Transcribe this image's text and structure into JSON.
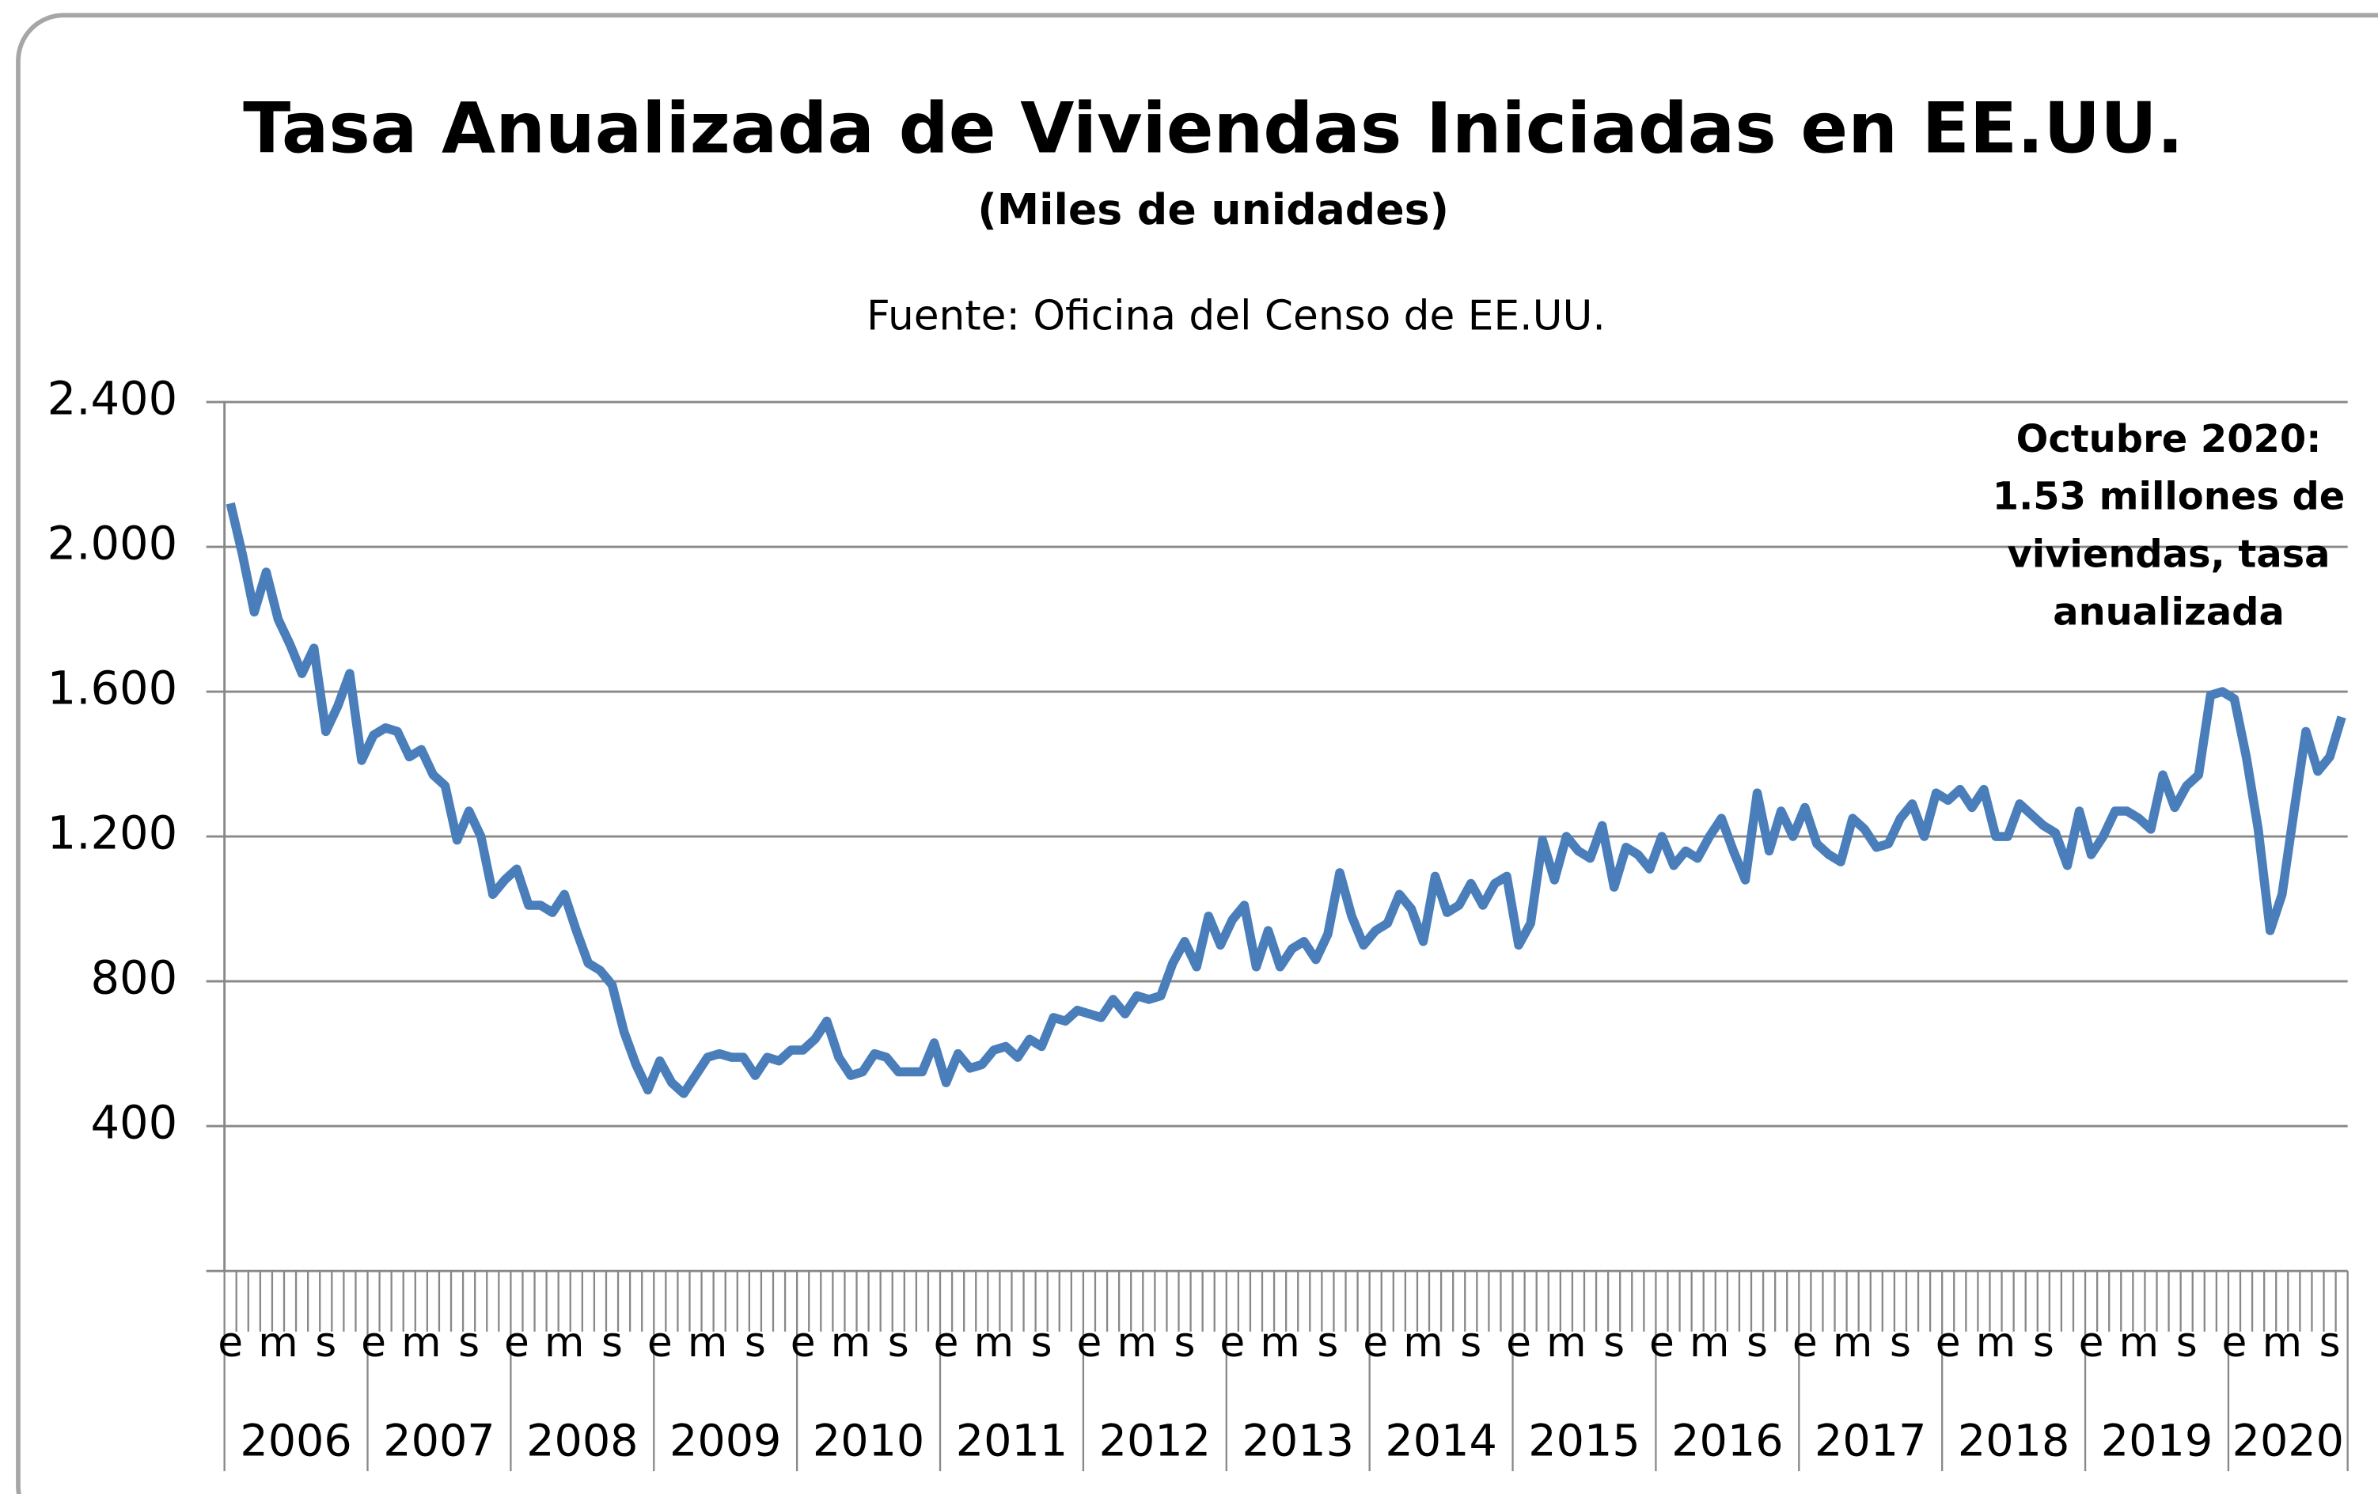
{
  "chart_data": {
    "type": "line",
    "title": "Tasa Anualizada de Viviendas Iniciadas en EE.UU.",
    "subtitle": "(Miles de unidades)",
    "source": "Fuente: Oficina del Censo de EE.UU.",
    "annotation": [
      "Octubre 2020:",
      "1.53 millones de",
      "viviendas, tasa",
      "anualizada"
    ],
    "categories": [
      "e",
      null,
      null,
      null,
      "m",
      null,
      null,
      null,
      "s",
      null,
      null,
      null,
      "e",
      null,
      null,
      null,
      "m",
      null,
      null,
      null,
      "s",
      null,
      null,
      null,
      "e",
      null,
      null,
      null,
      "m",
      null,
      null,
      null,
      "s",
      null,
      null,
      null,
      "e",
      null,
      null,
      null,
      "m",
      null,
      null,
      null,
      "s",
      null,
      null,
      null,
      "e",
      null,
      null,
      null,
      "m",
      null,
      null,
      null,
      "s",
      null,
      null,
      null,
      "e",
      null,
      null,
      null,
      "m",
      null,
      null,
      null,
      "s",
      null,
      null,
      null,
      "e",
      null,
      null,
      null,
      "m",
      null,
      null,
      null,
      "s",
      null,
      null,
      null,
      "e",
      null,
      null,
      null,
      "m",
      null,
      null,
      null,
      "s",
      null,
      null,
      null,
      "e",
      null,
      null,
      null,
      "m",
      null,
      null,
      null,
      "s",
      null,
      null,
      null,
      "e",
      null,
      null,
      null,
      "m",
      null,
      null,
      null,
      "s",
      null,
      null,
      null,
      "e",
      null,
      null,
      null,
      "m",
      null,
      null,
      null,
      "s",
      null,
      null,
      null,
      "e",
      null,
      null,
      null,
      "m",
      null,
      null,
      null,
      "s",
      null,
      null,
      null,
      "e",
      null,
      null,
      null,
      "m",
      null,
      null,
      null,
      "s",
      null,
      null,
      null,
      "e",
      null,
      null,
      null,
      "m",
      null,
      null,
      null,
      "s",
      null,
      null,
      null,
      "e",
      null,
      null,
      null,
      "m",
      null,
      null,
      null,
      "s",
      null
    ],
    "year_labels": [
      "2006",
      "2007",
      "2008",
      "2009",
      "2010",
      "2011",
      "2012",
      "2013",
      "2014",
      "2015",
      "2016",
      "2017",
      "2018",
      "2019",
      "2020"
    ],
    "series": [
      {
        "name": "Viviendas iniciadas",
        "color": "#4a7ebb",
        "values": [
          2120,
          1980,
          1820,
          1930,
          1800,
          1730,
          1650,
          1720,
          1490,
          1560,
          1650,
          1410,
          1480,
          1500,
          1490,
          1420,
          1440,
          1370,
          1340,
          1190,
          1270,
          1200,
          1040,
          1080,
          1110,
          1010,
          1010,
          990,
          1040,
          940,
          850,
          830,
          790,
          660,
          570,
          500,
          580,
          520,
          490,
          540,
          590,
          600,
          590,
          590,
          540,
          590,
          580,
          610,
          610,
          640,
          690,
          590,
          540,
          550,
          600,
          590,
          550,
          550,
          550,
          630,
          520,
          600,
          560,
          570,
          610,
          620,
          590,
          640,
          620,
          700,
          690,
          720,
          710,
          700,
          750,
          710,
          760,
          750,
          760,
          850,
          910,
          840,
          980,
          900,
          970,
          1010,
          840,
          940,
          840,
          890,
          910,
          860,
          930,
          1100,
          980,
          900,
          940,
          960,
          1040,
          1000,
          910,
          1090,
          990,
          1010,
          1070,
          1010,
          1070,
          1090,
          900,
          960,
          1190,
          1080,
          1200,
          1160,
          1140,
          1230,
          1060,
          1170,
          1150,
          1110,
          1200,
          1120,
          1160,
          1140,
          1200,
          1250,
          1160,
          1080,
          1320,
          1160,
          1270,
          1200,
          1280,
          1180,
          1150,
          1130,
          1250,
          1220,
          1170,
          1180,
          1250,
          1290,
          1200,
          1320,
          1300,
          1330,
          1280,
          1330,
          1200,
          1200,
          1290,
          1260,
          1230,
          1210,
          1120,
          1270,
          1150,
          1200,
          1270,
          1270,
          1250,
          1220,
          1370,
          1280,
          1340,
          1370,
          1590,
          1600,
          1580,
          1420,
          1220,
          940,
          1040,
          1270,
          1490,
          1380,
          1420,
          1530
        ]
      }
    ],
    "ylim": [
      0,
      2400
    ],
    "yticks": [
      400,
      800,
      {
        "value": 1200,
        "label": "1.200"
      },
      {
        "value": 1600,
        "label": "1.600"
      },
      {
        "value": 2000,
        "label": "2.000"
      },
      {
        "value": 2400,
        "label": "2.400"
      }
    ],
    "grid": true
  }
}
